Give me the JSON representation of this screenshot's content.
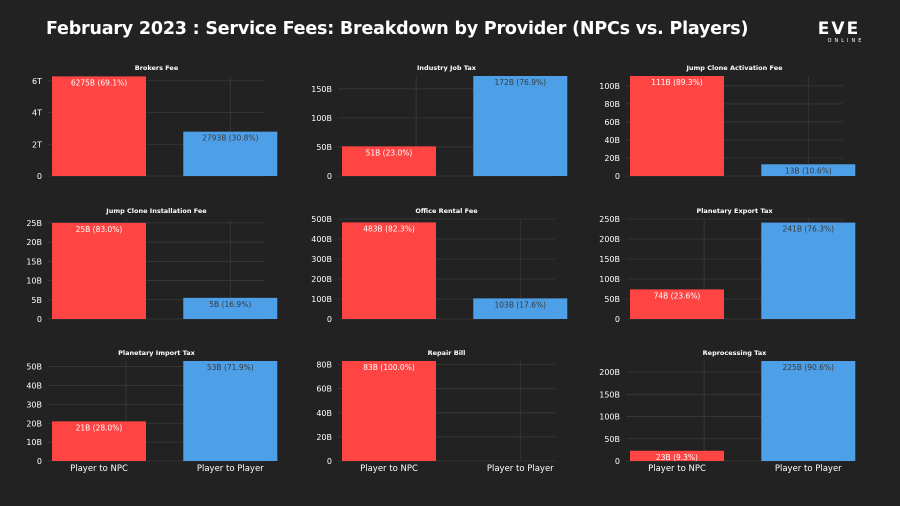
{
  "page": {
    "title": "February 2023 : Service Fees: Breakdown by Provider (NPCs vs. Players)",
    "logo_main": "EVE",
    "logo_sub": "ONLINE",
    "colors": {
      "background": "#222222",
      "npc": "#ff4444",
      "player": "#4da0e8",
      "grid": "#3a3a3a",
      "text": "#ffffff",
      "label_npc": "#ffffff",
      "label_player": "#3a3a3a"
    }
  },
  "chart_data": [
    {
      "type": "bar",
      "title": "Brokers Fee",
      "categories": [
        "Player to NPC",
        "Player to Player"
      ],
      "values": [
        6.275,
        2.793
      ],
      "unit": "T",
      "labels": [
        "6275B (69.1%)",
        "2793B (30.8%)"
      ],
      "ylim": [
        0,
        6.3
      ],
      "yticks": [
        0,
        2,
        4,
        6
      ],
      "ytick_labels": [
        "0",
        "2T",
        "4T",
        "6T"
      ],
      "show_xlabels": false
    },
    {
      "type": "bar",
      "title": "Industry Job Tax",
      "categories": [
        "Player to NPC",
        "Player to Player"
      ],
      "values": [
        51,
        172
      ],
      "unit": "B",
      "labels": [
        "51B (23.0%)",
        "172B (76.9%)"
      ],
      "ylim": [
        0,
        172
      ],
      "yticks": [
        0,
        50,
        100,
        150
      ],
      "ytick_labels": [
        "0",
        "50B",
        "100B",
        "150B"
      ],
      "show_xlabels": false
    },
    {
      "type": "bar",
      "title": "Jump Clone Activation Fee",
      "categories": [
        "Player to NPC",
        "Player to Player"
      ],
      "values": [
        111,
        13
      ],
      "unit": "B",
      "labels": [
        "111B (89.3%)",
        "13B (10.6%)"
      ],
      "ylim": [
        0,
        111
      ],
      "yticks": [
        0,
        20,
        40,
        60,
        80,
        100
      ],
      "ytick_labels": [
        "0",
        "20B",
        "40B",
        "60B",
        "80B",
        "100B"
      ],
      "show_xlabels": false
    },
    {
      "type": "bar",
      "title": "Jump Clone Installation Fee",
      "categories": [
        "Player to NPC",
        "Player to Player"
      ],
      "values": [
        25,
        5.5
      ],
      "unit": "B",
      "labels": [
        "25B (83.0%)",
        "5B (16.9%)"
      ],
      "ylim": [
        0,
        26
      ],
      "yticks": [
        0,
        5,
        10,
        15,
        20,
        25
      ],
      "ytick_labels": [
        "0",
        "5B",
        "10B",
        "15B",
        "20B",
        "25B"
      ],
      "show_xlabels": false
    },
    {
      "type": "bar",
      "title": "Office Rental Fee",
      "categories": [
        "Player to NPC",
        "Player to Player"
      ],
      "values": [
        483,
        103
      ],
      "unit": "B",
      "labels": [
        "483B (82.3%)",
        "103B (17.6%)"
      ],
      "ylim": [
        0,
        500
      ],
      "yticks": [
        0,
        100,
        200,
        300,
        400,
        500
      ],
      "ytick_labels": [
        "0",
        "100B",
        "200B",
        "300B",
        "400B",
        "500B"
      ],
      "show_xlabels": false
    },
    {
      "type": "bar",
      "title": "Planetary Export Tax",
      "categories": [
        "Player to NPC",
        "Player to Player"
      ],
      "values": [
        74,
        241
      ],
      "unit": "B",
      "labels": [
        "74B (23.6%)",
        "241B (76.3%)"
      ],
      "ylim": [
        0,
        250
      ],
      "yticks": [
        0,
        50,
        100,
        150,
        200,
        250
      ],
      "ytick_labels": [
        "0",
        "50B",
        "100B",
        "150B",
        "200B",
        "250B"
      ],
      "show_xlabels": false
    },
    {
      "type": "bar",
      "title": "Planetary Import Tax",
      "categories": [
        "Player to NPC",
        "Player to Player"
      ],
      "values": [
        21,
        53
      ],
      "unit": "B",
      "labels": [
        "21B (28.0%)",
        "53B (71.9%)"
      ],
      "ylim": [
        0,
        53
      ],
      "yticks": [
        0,
        10,
        20,
        30,
        40,
        50
      ],
      "ytick_labels": [
        "0",
        "10B",
        "20B",
        "30B",
        "40B",
        "50B"
      ],
      "show_xlabels": true
    },
    {
      "type": "bar",
      "title": "Repair Bill",
      "categories": [
        "Player to NPC",
        "Player to Player"
      ],
      "values": [
        83,
        0
      ],
      "unit": "B",
      "labels": [
        "83B (100.0%)",
        ""
      ],
      "ylim": [
        0,
        83
      ],
      "yticks": [
        0,
        20,
        40,
        60,
        80
      ],
      "ytick_labels": [
        "0",
        "20B",
        "40B",
        "60B",
        "80B"
      ],
      "show_xlabels": true
    },
    {
      "type": "bar",
      "title": "Reprocessing Tax",
      "categories": [
        "Player to NPC",
        "Player to Player"
      ],
      "values": [
        23,
        225
      ],
      "unit": "B",
      "labels": [
        "23B (9.3%)",
        "225B (90.6%)"
      ],
      "ylim": [
        0,
        225
      ],
      "yticks": [
        0,
        50,
        100,
        150,
        200
      ],
      "ytick_labels": [
        "0",
        "50B",
        "100B",
        "150B",
        "200B"
      ],
      "show_xlabels": true
    }
  ]
}
